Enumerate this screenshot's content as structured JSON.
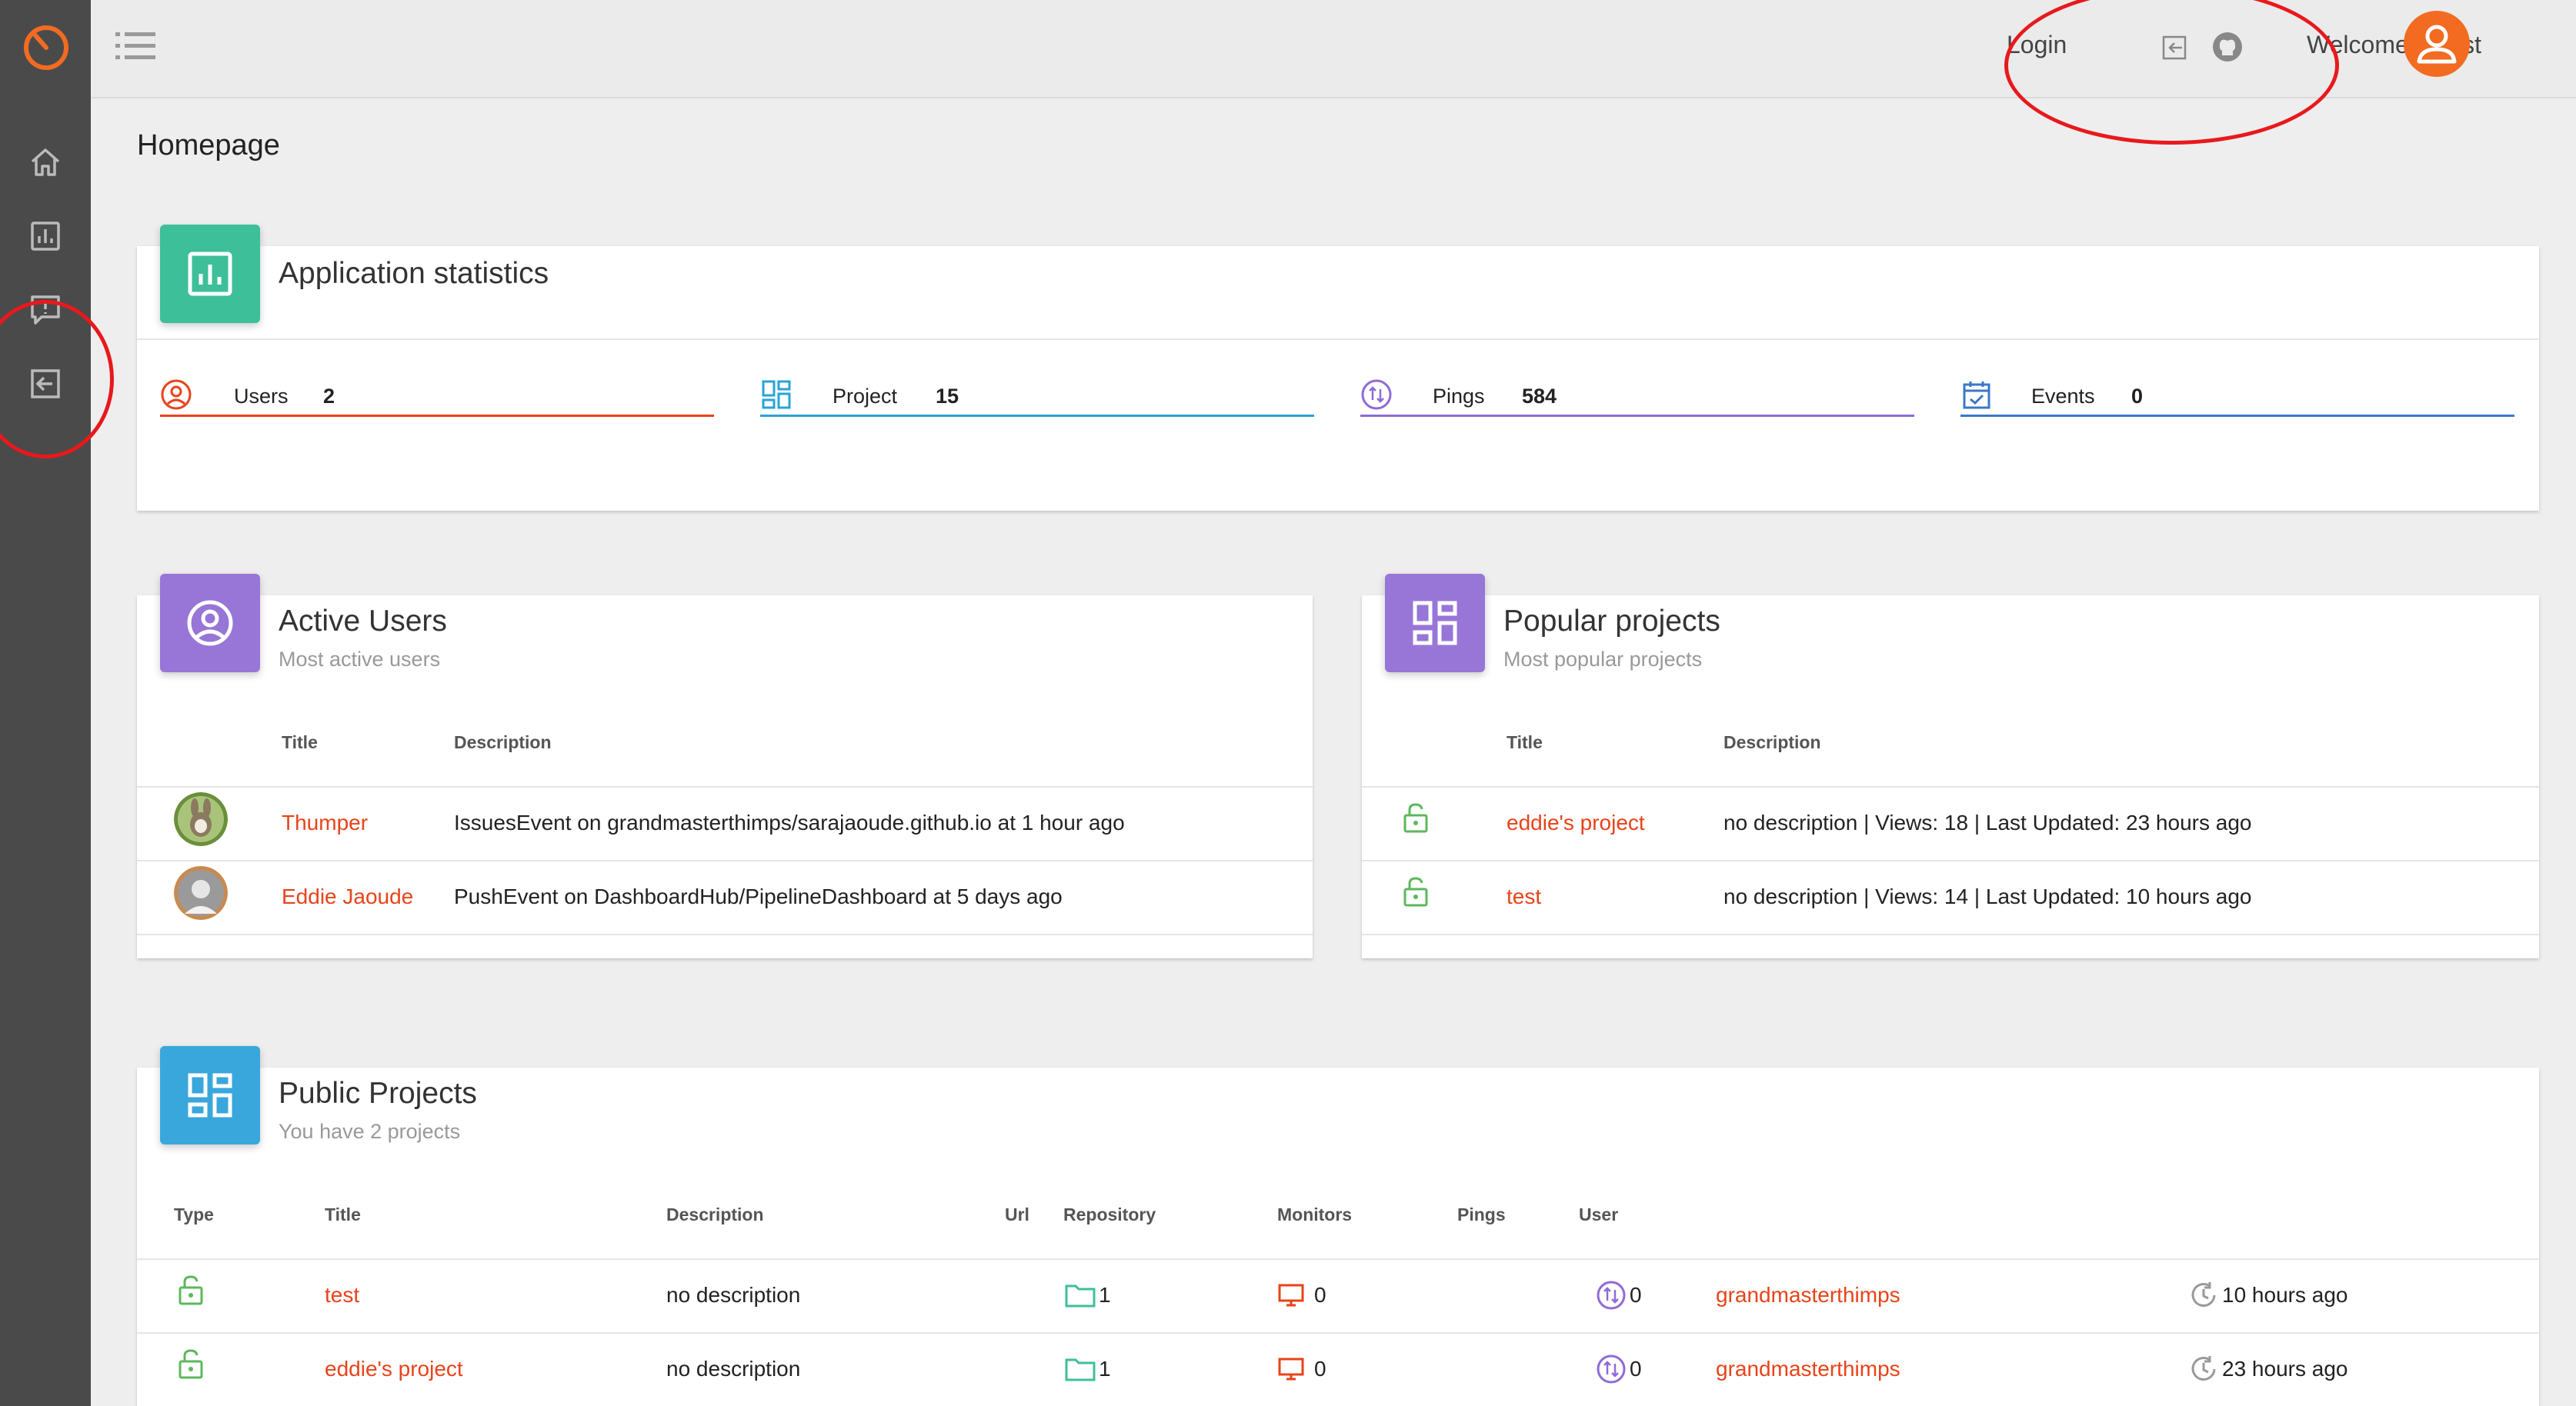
{
  "header": {
    "login_label": "Login",
    "welcome_text": "Welcome Guest"
  },
  "page": {
    "title": "Homepage"
  },
  "app_stats": {
    "title": "Application statistics",
    "items": [
      {
        "label": "Users",
        "value": "2",
        "color": "#e8431a",
        "icon": "user-circle-icon"
      },
      {
        "label": "Project",
        "value": "15",
        "color": "#29a3d6",
        "icon": "dashboard-icon"
      },
      {
        "label": "Pings",
        "value": "584",
        "color": "#8e6bd6",
        "icon": "ping-icon"
      },
      {
        "label": "Events",
        "value": "0",
        "color": "#3a78c9",
        "icon": "calendar-check-icon"
      }
    ]
  },
  "active_users": {
    "title": "Active Users",
    "subtitle": "Most active users",
    "columns": [
      "Title",
      "Description"
    ],
    "rows": [
      {
        "name": "Thumper",
        "description": "IssuesEvent on grandmasterthimps/sarajaoude.github.io at 1 hour ago"
      },
      {
        "name": "Eddie Jaoude",
        "description": "PushEvent on DashboardHub/PipelineDashboard at 5 days ago"
      }
    ]
  },
  "popular_projects": {
    "title": "Popular projects",
    "subtitle": "Most popular projects",
    "columns": [
      "Title",
      "Description"
    ],
    "rows": [
      {
        "name": "eddie's project",
        "description": "no description | Views: 18 | Last Updated: 23 hours ago"
      },
      {
        "name": "test",
        "description": "no description | Views: 14 | Last Updated: 10 hours ago"
      }
    ]
  },
  "public_projects": {
    "title": "Public Projects",
    "subtitle": "You have 2 projects",
    "columns": [
      "Type",
      "Title",
      "Description",
      "Url",
      "Repository",
      "Monitors",
      "Pings",
      "User"
    ],
    "rows": [
      {
        "title": "test",
        "description": "no description",
        "repos": "1",
        "monitors": "0",
        "pings": "0",
        "user": "grandmasterthimps",
        "updated": "10 hours ago"
      },
      {
        "title": "eddie's project",
        "description": "no description",
        "repos": "1",
        "monitors": "0",
        "pings": "0",
        "user": "grandmasterthimps",
        "updated": "23 hours ago"
      }
    ]
  },
  "colors": {
    "accent": "#f26b21",
    "link": "#e8431a",
    "stats_badge": "#3dbf9a",
    "users_badge": "#9776d8",
    "projects_badge": "#3aa7dc",
    "public_icon": "#5cb85c"
  }
}
